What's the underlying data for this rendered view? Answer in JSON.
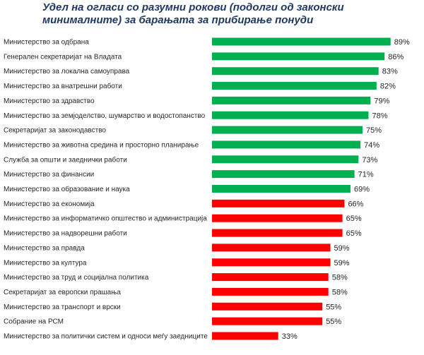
{
  "chart_data": {
    "type": "bar",
    "orientation": "horizontal",
    "title": "Удел на огласи со разумни рокови (подолги од законски минималните) за барањата за прибирање понуди",
    "xlim": [
      0,
      100
    ],
    "grid": false,
    "legend": "none",
    "value_format": "percent",
    "colors": {
      "above": "#00b050",
      "below": "#ff0000"
    },
    "categories": [
      "Министерство за одбрана",
      "Генерален секретаријат на Владата",
      "Министерство за локална самоуправа",
      "Министерство за внатрешни работи",
      "Министерство за здравство",
      "Министерство за земјоделство, шумарство и водостопанство",
      "Секретаријат за законодавство",
      "Министерство за животна средина и просторно планирање",
      "Служба за општи и заеднички работи",
      "Министерство за финансии",
      "Министерство за образование и наука",
      "Министерство за економија",
      "Министерство за информатичко општество и администрација",
      "Министерство за надворешни работи",
      "Министерство за правда",
      "Министерство за култура",
      "Министерство за труд и социјална политика",
      "Секретаријат за европски прашања",
      "Министерство за транспорт и врски",
      "Собрание на РСМ",
      "Министерство за политички систем и односи меѓу заедниците"
    ],
    "values": [
      89,
      86,
      83,
      82,
      79,
      78,
      75,
      74,
      73,
      71,
      69,
      66,
      65,
      65,
      59,
      59,
      58,
      58,
      55,
      55,
      33
    ],
    "bar_colors": [
      "above",
      "above",
      "above",
      "above",
      "above",
      "above",
      "above",
      "above",
      "above",
      "above",
      "above",
      "below",
      "below",
      "below",
      "below",
      "below",
      "below",
      "below",
      "below",
      "below",
      "below"
    ]
  }
}
